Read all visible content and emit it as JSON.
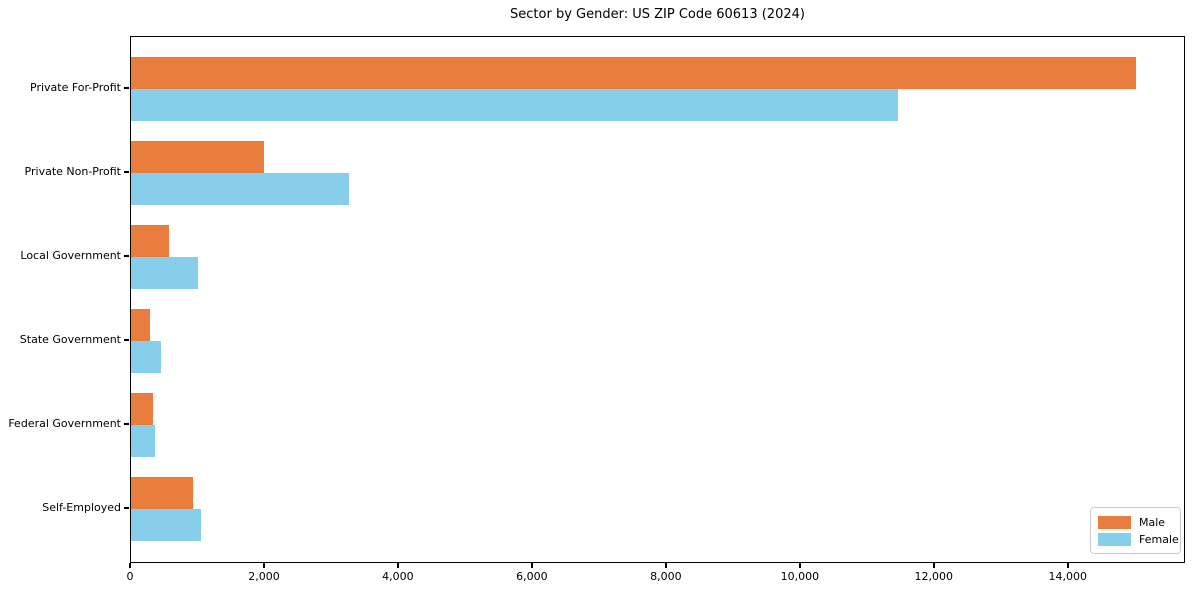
{
  "chart_data": {
    "type": "bar",
    "orientation": "horizontal",
    "title": "Sector by Gender: US ZIP Code 60613 (2024)",
    "categories": [
      "Private For-Profit",
      "Private Non-Profit",
      "Local Government",
      "State Government",
      "Federal Government",
      "Self-Employed"
    ],
    "series": [
      {
        "name": "Male",
        "color": "#e87d3e",
        "values": [
          15000,
          1980,
          570,
          290,
          330,
          930
        ]
      },
      {
        "name": "Female",
        "color": "#87ceeb",
        "values": [
          11450,
          3250,
          1000,
          440,
          360,
          1050
        ]
      }
    ],
    "xlim": [
      0,
      15750
    ],
    "xticks": [
      0,
      2000,
      4000,
      6000,
      8000,
      10000,
      12000,
      14000
    ],
    "xtick_labels": [
      "0",
      "2,000",
      "4,000",
      "6,000",
      "8,000",
      "10,000",
      "12,000",
      "14,000"
    ],
    "xlabel": "",
    "ylabel": "",
    "grid": false,
    "legend": {
      "position": "lower right",
      "entries": [
        "Male",
        "Female"
      ]
    },
    "axis_color": "#000000",
    "background_color": "#ffffff"
  }
}
